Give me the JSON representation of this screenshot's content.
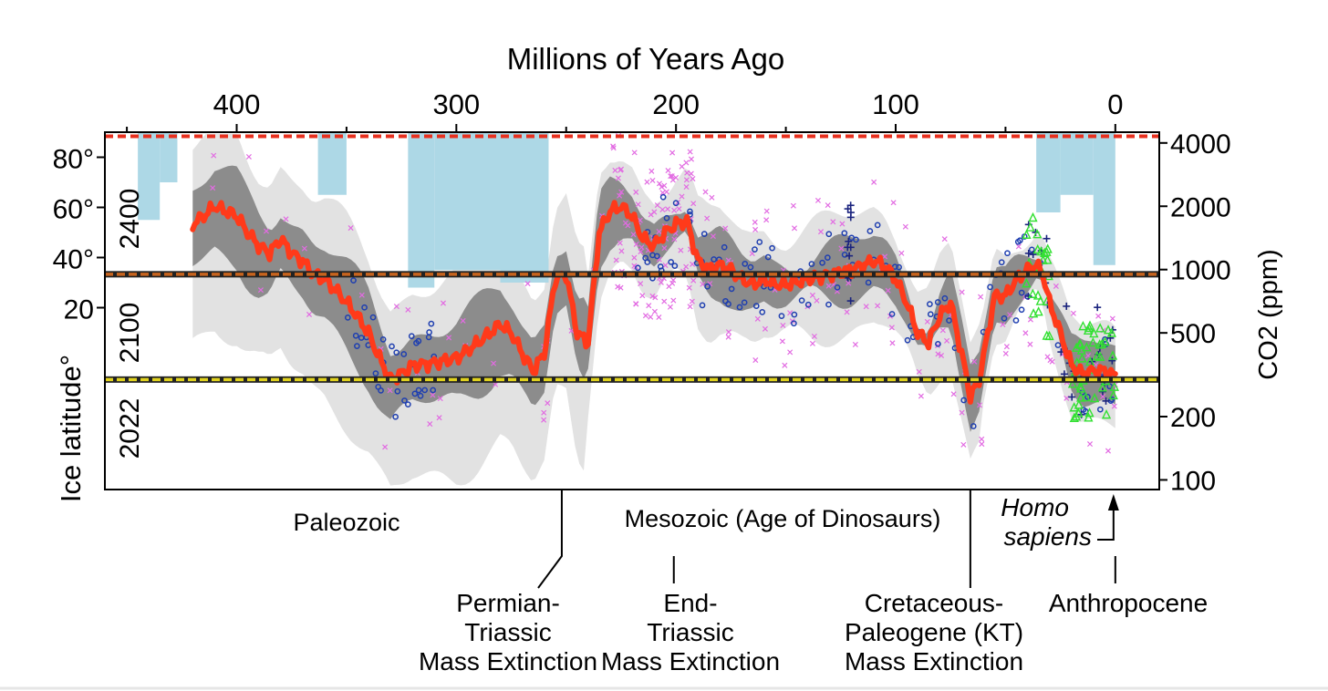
{
  "chart_data": {
    "type": "line",
    "title": "Millions of Years  Ago",
    "xlabel": "Millions of Years  Ago",
    "ylabel_left": "Ice latitude°",
    "ylabel_right": "CO2 (ppm)",
    "xlim": [
      460,
      -20
    ],
    "xticks": [
      {
        "value": 400,
        "label": "400"
      },
      {
        "value": 300,
        "label": "300"
      },
      {
        "value": 200,
        "label": "200"
      },
      {
        "value": 100,
        "label": "100"
      },
      {
        "value": 0,
        "label": "0"
      }
    ],
    "co2_scale": "log",
    "co2_range": [
      90,
      4500
    ],
    "co2_ticks": [
      {
        "value": 4000,
        "label": "4000"
      },
      {
        "value": 2000,
        "label": "2000"
      },
      {
        "value": 1000,
        "label": "1000"
      },
      {
        "value": 500,
        "label": "500"
      },
      {
        "value": 200,
        "label": "200"
      },
      {
        "value": 100,
        "label": "100"
      }
    ],
    "ice_latitude_ticks": [
      {
        "value": 80,
        "label": "80°"
      },
      {
        "value": 60,
        "label": "60°"
      },
      {
        "value": 40,
        "label": "40°"
      },
      {
        "value": 20,
        "label": "20"
      }
    ],
    "reference_lines": [
      {
        "label": "2400",
        "co2": 4300,
        "color": "#e8301e"
      },
      {
        "label": "2100",
        "co2": 950,
        "color": "#c8641e"
      },
      {
        "label": "2022",
        "co2": 300,
        "color": "#e0d21e"
      }
    ],
    "ice_extent": [
      {
        "x0": 445,
        "x1": 435,
        "lat": 55
      },
      {
        "x0": 435,
        "x1": 427,
        "lat": 70
      },
      {
        "x0": 363,
        "x1": 350,
        "lat": 65
      },
      {
        "x0": 322,
        "x1": 310,
        "lat": 28
      },
      {
        "x0": 310,
        "x1": 280,
        "lat": 35
      },
      {
        "x0": 280,
        "x1": 258,
        "lat": 30
      },
      {
        "x0": 36,
        "x1": 25,
        "lat": 58
      },
      {
        "x0": 25,
        "x1": 10,
        "lat": 65
      },
      {
        "x0": 10,
        "x1": 0,
        "lat": 37
      }
    ],
    "series": [
      {
        "name": "",
        "color": "#ff3a1a",
        "x": [
          420,
          415,
          410,
          405,
          400,
          395,
          390,
          385,
          380,
          375,
          370,
          365,
          360,
          355,
          350,
          345,
          340,
          335,
          330,
          325,
          320,
          310,
          300,
          290,
          280,
          275,
          270,
          265,
          260,
          255,
          250,
          245,
          240,
          235,
          230,
          225,
          220,
          215,
          210,
          205,
          200,
          195,
          190,
          185,
          180,
          175,
          170,
          165,
          160,
          155,
          150,
          140,
          130,
          120,
          110,
          105,
          100,
          95,
          90,
          85,
          80,
          75,
          70,
          66,
          62,
          58,
          55,
          50,
          45,
          40,
          36,
          33,
          30,
          25,
          20,
          15,
          10,
          5,
          2,
          0
        ],
        "y": [
          1650,
          1800,
          2000,
          1900,
          1800,
          1500,
          1300,
          1200,
          1400,
          1200,
          1100,
          950,
          900,
          800,
          700,
          600,
          500,
          380,
          300,
          320,
          350,
          360,
          380,
          450,
          550,
          500,
          400,
          330,
          400,
          900,
          950,
          500,
          450,
          1500,
          1900,
          2000,
          1800,
          1400,
          1300,
          1500,
          1650,
          1700,
          1100,
          1000,
          1050,
          1000,
          900,
          850,
          900,
          850,
          850,
          900,
          950,
          1000,
          1100,
          1050,
          900,
          700,
          500,
          450,
          600,
          700,
          400,
          250,
          300,
          500,
          750,
          750,
          900,
          1000,
          1050,
          950,
          700,
          500,
          350,
          320,
          330,
          330,
          320,
          310
        ]
      }
    ],
    "eras": [
      "Paleozoic",
      "Mesozoic (Age of Dinosaurs)"
    ],
    "events": [
      {
        "x": 252,
        "lines": [
          "Permian-",
          "Triassic",
          "Mass Extinction"
        ]
      },
      {
        "x": 201,
        "lines": [
          "End-",
          "Triassic",
          "Mass Extinction"
        ]
      },
      {
        "x": 66,
        "lines": [
          "Cretaceous-",
          "Paleogene (KT)",
          "Mass Extinction"
        ]
      },
      {
        "x": 0,
        "lines": [
          "Anthropocene"
        ]
      }
    ],
    "homo_sapiens": [
      "Homo",
      "sapiens"
    ]
  },
  "colors": {
    "ice": "#add8e6",
    "outer_band": "#e2e2e2",
    "inner_band": "#8c8c8c",
    "proxy_pink": "#e26be2",
    "proxy_blue": "#1f3fb0",
    "proxy_navy": "#1a237e",
    "proxy_green": "#32e032"
  }
}
